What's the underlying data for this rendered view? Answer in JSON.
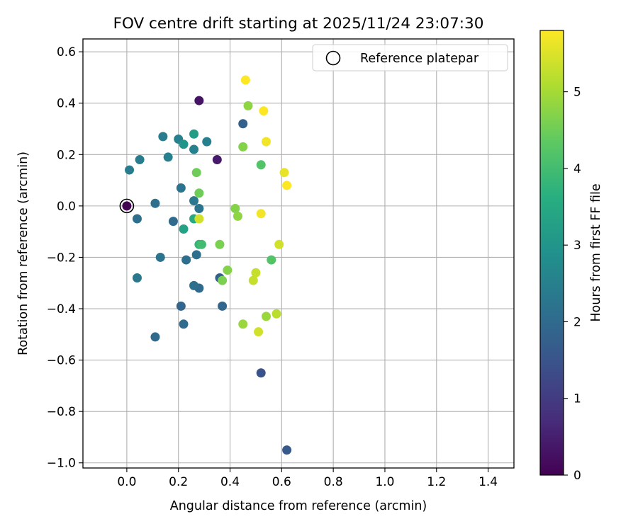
{
  "chart_data": {
    "type": "scatter",
    "title": "FOV centre drift starting at 2025/11/24 23:07:30",
    "xlabel": "Angular distance from reference (arcmin)",
    "ylabel": "Rotation from reference (arcmin)",
    "xlim": [
      -0.17,
      1.5
    ],
    "ylim": [
      -1.02,
      0.65
    ],
    "xticks": [
      0.0,
      0.2,
      0.4,
      0.6,
      0.8,
      1.0,
      1.2,
      1.4
    ],
    "xtick_labels": [
      "0.0",
      "0.2",
      "0.4",
      "0.6",
      "0.8",
      "1.0",
      "1.2",
      "1.4"
    ],
    "yticks": [
      0.6,
      0.4,
      0.2,
      0.0,
      -0.2,
      -0.4,
      -0.6,
      -0.8,
      -1.0
    ],
    "ytick_labels": [
      "0.6",
      "0.4",
      "0.2",
      "0.0",
      "−0.2",
      "−0.4",
      "−0.6",
      "−0.8",
      "−1.0"
    ],
    "grid": true,
    "legend": {
      "label": "Reference platepar",
      "position": "top-right"
    },
    "reference_point": {
      "x": 0.0,
      "y": 0.0,
      "hours": 0.0
    },
    "colorbar": {
      "label": "Hours from first FF file",
      "range": [
        0,
        5.8
      ],
      "ticks": [
        0,
        1,
        2,
        3,
        4,
        5
      ],
      "tick_labels": [
        "0",
        "1",
        "2",
        "3",
        "4",
        "5"
      ],
      "colormap": "viridis",
      "stops": [
        "#440154",
        "#472d7b",
        "#3b528b",
        "#2c728e",
        "#21918c",
        "#28ae80",
        "#5ec962",
        "#addc30",
        "#fde725"
      ]
    },
    "points": [
      {
        "x": 0.28,
        "y": 0.41,
        "hours": 0.3
      },
      {
        "x": 0.35,
        "y": 0.18,
        "hours": 0.4
      },
      {
        "x": 0.52,
        "y": -0.65,
        "hours": 1.5
      },
      {
        "x": 0.62,
        "y": -0.95,
        "hours": 1.6
      },
      {
        "x": 0.45,
        "y": 0.32,
        "hours": 1.8
      },
      {
        "x": 0.36,
        "y": -0.28,
        "hours": 1.8
      },
      {
        "x": 0.37,
        "y": -0.39,
        "hours": 1.9
      },
      {
        "x": 0.21,
        "y": -0.39,
        "hours": 1.9
      },
      {
        "x": 0.22,
        "y": -0.46,
        "hours": 2.0
      },
      {
        "x": 0.11,
        "y": -0.51,
        "hours": 2.0
      },
      {
        "x": 0.28,
        "y": -0.32,
        "hours": 2.0
      },
      {
        "x": 0.26,
        "y": -0.31,
        "hours": 2.1
      },
      {
        "x": 0.23,
        "y": -0.21,
        "hours": 2.1
      },
      {
        "x": 0.27,
        "y": -0.19,
        "hours": 2.1
      },
      {
        "x": 0.18,
        "y": -0.06,
        "hours": 2.0
      },
      {
        "x": 0.11,
        "y": 0.01,
        "hours": 2.1
      },
      {
        "x": 0.04,
        "y": -0.05,
        "hours": 2.1
      },
      {
        "x": 0.13,
        "y": -0.2,
        "hours": 2.2
      },
      {
        "x": 0.04,
        "y": -0.28,
        "hours": 2.3
      },
      {
        "x": 0.26,
        "y": 0.02,
        "hours": 2.3
      },
      {
        "x": 0.28,
        "y": -0.01,
        "hours": 2.2
      },
      {
        "x": 0.21,
        "y": 0.07,
        "hours": 2.2
      },
      {
        "x": 0.01,
        "y": 0.14,
        "hours": 2.4
      },
      {
        "x": 0.05,
        "y": 0.18,
        "hours": 2.4
      },
      {
        "x": 0.14,
        "y": 0.27,
        "hours": 2.4
      },
      {
        "x": 0.16,
        "y": 0.19,
        "hours": 2.5
      },
      {
        "x": 0.2,
        "y": 0.26,
        "hours": 2.5
      },
      {
        "x": 0.26,
        "y": 0.22,
        "hours": 2.5
      },
      {
        "x": 0.31,
        "y": 0.25,
        "hours": 2.5
      },
      {
        "x": 0.22,
        "y": 0.24,
        "hours": 3.0
      },
      {
        "x": 0.26,
        "y": 0.28,
        "hours": 3.2
      },
      {
        "x": 0.22,
        "y": -0.09,
        "hours": 3.3
      },
      {
        "x": 0.26,
        "y": -0.05,
        "hours": 3.5
      },
      {
        "x": 0.28,
        "y": -0.15,
        "hours": 3.8
      },
      {
        "x": 0.29,
        "y": -0.15,
        "hours": 4.0
      },
      {
        "x": 0.52,
        "y": 0.16,
        "hours": 4.2
      },
      {
        "x": 0.56,
        "y": -0.21,
        "hours": 4.2
      },
      {
        "x": 0.27,
        "y": 0.13,
        "hours": 4.5
      },
      {
        "x": 0.28,
        "y": 0.05,
        "hours": 4.5
      },
      {
        "x": 0.36,
        "y": -0.15,
        "hours": 4.6
      },
      {
        "x": 0.37,
        "y": -0.29,
        "hours": 4.6
      },
      {
        "x": 0.39,
        "y": -0.25,
        "hours": 4.7
      },
      {
        "x": 0.42,
        "y": -0.01,
        "hours": 4.7
      },
      {
        "x": 0.43,
        "y": -0.04,
        "hours": 4.8
      },
      {
        "x": 0.45,
        "y": 0.23,
        "hours": 4.7
      },
      {
        "x": 0.47,
        "y": 0.39,
        "hours": 4.8
      },
      {
        "x": 0.45,
        "y": -0.46,
        "hours": 4.9
      },
      {
        "x": 0.54,
        "y": -0.43,
        "hours": 4.9
      },
      {
        "x": 0.58,
        "y": -0.42,
        "hours": 5.2
      },
      {
        "x": 0.5,
        "y": -0.26,
        "hours": 5.3
      },
      {
        "x": 0.49,
        "y": -0.29,
        "hours": 5.3
      },
      {
        "x": 0.51,
        "y": -0.49,
        "hours": 5.4
      },
      {
        "x": 0.28,
        "y": -0.05,
        "hours": 5.4
      },
      {
        "x": 0.59,
        "y": -0.15,
        "hours": 5.4
      },
      {
        "x": 0.61,
        "y": 0.13,
        "hours": 5.6
      },
      {
        "x": 0.52,
        "y": -0.03,
        "hours": 5.7
      },
      {
        "x": 0.54,
        "y": 0.25,
        "hours": 5.7
      },
      {
        "x": 0.53,
        "y": 0.37,
        "hours": 5.8
      },
      {
        "x": 0.46,
        "y": 0.49,
        "hours": 5.8
      },
      {
        "x": 0.62,
        "y": 0.08,
        "hours": 5.8
      }
    ]
  }
}
